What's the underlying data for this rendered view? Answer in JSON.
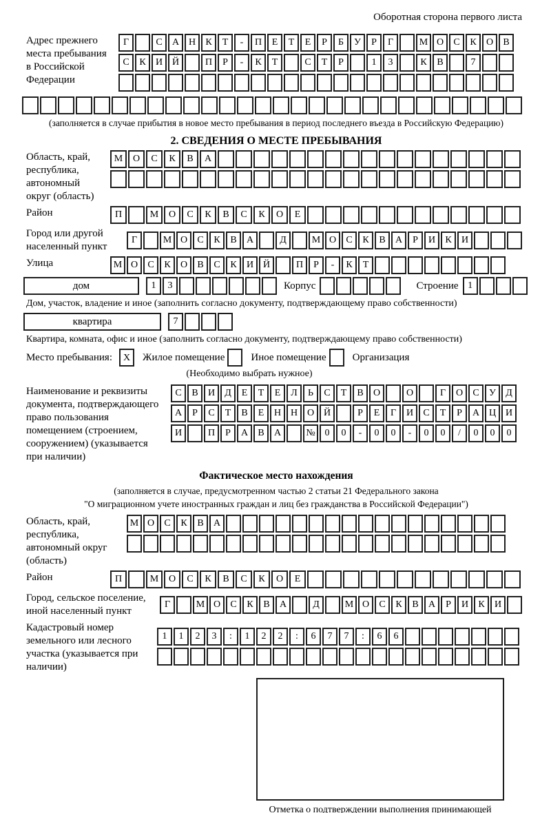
{
  "header": {
    "note": "Оборотная сторона первого листа"
  },
  "prev_address": {
    "label": "Адрес прежнего места пребывания в Российской Федерации",
    "rows": [
      {
        "chars": "Г САНКТ-ПЕТЕРБУРГ МОСКОВ",
        "len": 24
      },
      {
        "chars": "СКИЙ ПР-КТ СТР 13 КВ 7",
        "len": 24
      },
      {
        "chars": "",
        "len": 24
      },
      {
        "chars": "",
        "len": 28
      }
    ],
    "note": "(заполняется в случае прибытия в новое место пребывания в период последнего въезда в Российскую Федерацию)"
  },
  "section2": {
    "title": "2. СВЕДЕНИЯ О МЕСТЕ ПРЕБЫВАНИЯ",
    "region": {
      "label": "Область, край, республика, автономный округ (область)",
      "rows": [
        {
          "chars": "МОСКВА",
          "len": 23
        },
        {
          "chars": "",
          "len": 23
        }
      ]
    },
    "district": {
      "label": "Район",
      "row": {
        "chars": "П МОСКВСКОЕ",
        "len": 23
      }
    },
    "city": {
      "label": "Город или другой населенный пункт",
      "row": {
        "chars": "Г МОСКВА Д МОСКВАРИКИ",
        "len": 24
      }
    },
    "street": {
      "label": "Улица",
      "row": {
        "chars": "МОСКОВСКИЙ ПР-КТ",
        "len": 24
      }
    },
    "house": {
      "box_label": "дом",
      "cells": {
        "chars": "13",
        "len": 8
      },
      "korpus_label": "Корпус",
      "korpus_cells": {
        "chars": "",
        "len": 5
      },
      "stroenie_label": "Строение",
      "stroenie_cells": {
        "chars": "1",
        "len": 4
      },
      "note": "Дом, участок, владение и иное (заполнить согласно документу, подтверждающему право собственности)"
    },
    "apartment": {
      "box_label": "квартира",
      "cells": {
        "chars": "7",
        "len": 4
      },
      "note": "Квартира, комната, офис и иное (заполнить согласно документу, подтверждающему право собственности)"
    },
    "residence_type": {
      "prefix": "Место пребывания:",
      "options": [
        {
          "label": "Жилое помещение",
          "mark": "X"
        },
        {
          "label": "Иное помещение",
          "mark": ""
        },
        {
          "label": "Организация",
          "mark": ""
        }
      ],
      "note": "(Необходимо выбрать нужное)"
    },
    "document": {
      "label": "Наименование и реквизиты документа, подтверждающего право пользования помещением (строением, сооружением) (указывается при наличии)",
      "rows": [
        {
          "chars": "СВИДЕТЕЛЬСТВО О ГОСУД",
          "len": 21
        },
        {
          "chars": "АРСТВЕННОЙ РЕГИСТРАЦИ",
          "len": 21
        },
        {
          "chars": "И ПРАВА №00-00-00/000",
          "len": 21
        }
      ]
    }
  },
  "actual_location": {
    "title": "Фактическое место нахождения",
    "note_line1": "(заполняется в случае, предусмотренном частью 2 статьи 21 Федерального закона",
    "note_line2": "\"О миграционном учете иностранных граждан и лиц без гражданства в Российской Федерации\")",
    "region": {
      "label": "Область, край, республика, автономный округ (область)",
      "rows": [
        {
          "chars": "МОСКВА",
          "len": 23
        },
        {
          "chars": "",
          "len": 23
        }
      ]
    },
    "district": {
      "label": "Район",
      "row": {
        "chars": "П МОСКВСКОЕ",
        "len": 23
      }
    },
    "city": {
      "label": "Город, сельское поселение, иной населенный пункт",
      "row": {
        "chars": "Г МОСКВА Д МОСКВАРИКИ",
        "len": 22
      }
    },
    "cadastral": {
      "label": "Кадастровый номер земельного или лесного участка (указывается при наличии)",
      "rows": [
        {
          "chars": "1123:122:677:66",
          "len": 22
        },
        {
          "chars": "",
          "len": 22
        }
      ]
    }
  },
  "stamp": {
    "caption": "Отметка о подтверждении выполнения принимающей стороной и иностранным гражданином или лицом без гражданства действий, необходимых для его постановки на учет по месту пребывания"
  }
}
